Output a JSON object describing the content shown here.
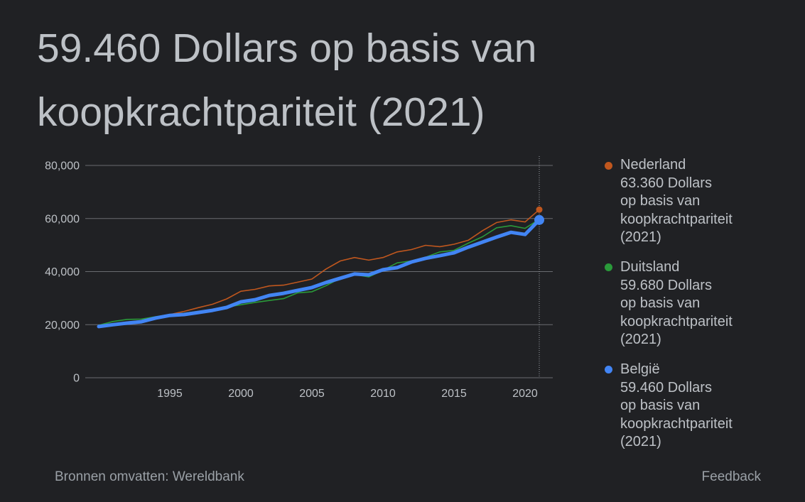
{
  "header": {
    "title": "59.460 Dollars op basis van koopkrachtpariteit (2021)"
  },
  "chart_data": {
    "type": "line",
    "xlim": [
      1989,
      2022
    ],
    "ylim": [
      0,
      80000
    ],
    "x": [
      1990,
      1991,
      1992,
      1993,
      1994,
      1995,
      1996,
      1997,
      1998,
      1999,
      2000,
      2001,
      2002,
      2003,
      2004,
      2005,
      2006,
      2007,
      2008,
      2009,
      2010,
      2011,
      2012,
      2013,
      2014,
      2015,
      2016,
      2017,
      2018,
      2019,
      2020,
      2021
    ],
    "xticks": [
      1995,
      2000,
      2005,
      2010,
      2015,
      2020
    ],
    "yticks": [
      0,
      20000,
      40000,
      60000,
      80000
    ],
    "ytick_labels": [
      "0",
      "20,000",
      "40,000",
      "60,000",
      "80,000"
    ],
    "grid": true,
    "legend": "right",
    "series": [
      {
        "name": "Nederland",
        "legend_value": "63.360 Dollars op basis van koopkrachtpariteit (2021)",
        "color": "#c0571e",
        "highlighted": false,
        "values": [
          19500,
          20300,
          21000,
          21500,
          22800,
          23800,
          25000,
          26400,
          27700,
          29700,
          32600,
          33300,
          34600,
          34900,
          36000,
          37200,
          41000,
          44000,
          45300,
          44300,
          45300,
          47400,
          48300,
          49900,
          49400,
          50300,
          51800,
          55400,
          58500,
          59500,
          58700,
          63360
        ]
      },
      {
        "name": "Duitsland",
        "legend_value": "59.680 Dollars op basis van koopkrachtpariteit (2021)",
        "color": "#2a9a3a",
        "highlighted": false,
        "values": [
          19800,
          21200,
          22000,
          22100,
          23000,
          23800,
          24300,
          25000,
          25700,
          26600,
          27500,
          28400,
          29100,
          29800,
          32000,
          32400,
          34700,
          37500,
          38900,
          38000,
          40500,
          43300,
          44000,
          45400,
          47400,
          48000,
          50700,
          53100,
          56500,
          57300,
          56300,
          59680
        ]
      },
      {
        "name": "België",
        "legend_value": "59.460 Dollars op basis van koopkrachtpariteit (2021)",
        "color": "#4285f4",
        "highlighted": true,
        "values": [
          19300,
          20000,
          20600,
          21100,
          22500,
          23500,
          23800,
          24600,
          25400,
          26500,
          28600,
          29400,
          31000,
          31800,
          32900,
          34000,
          35900,
          37500,
          39100,
          38800,
          40700,
          41500,
          43600,
          45000,
          46000,
          47100,
          49200,
          51100,
          53000,
          54800,
          54000,
          59460
        ]
      }
    ]
  },
  "footer": {
    "source": "Bronnen omvatten: Wereldbank",
    "feedback": "Feedback"
  }
}
